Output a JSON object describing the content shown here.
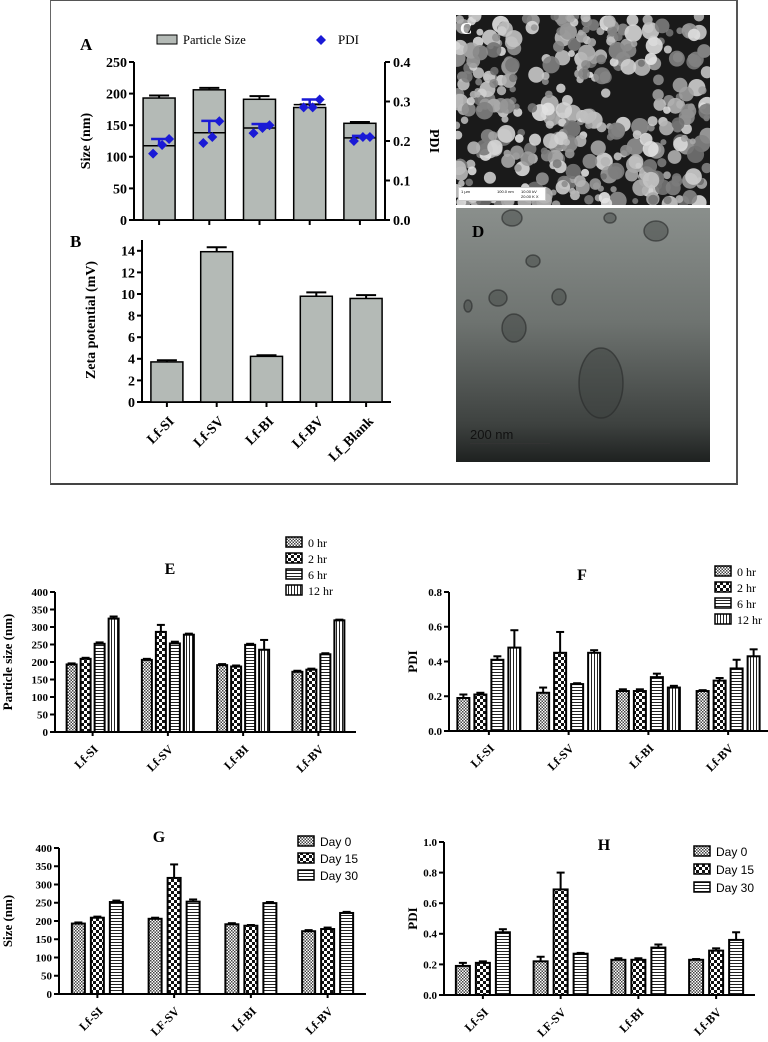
{
  "figure": {
    "panels": {
      "A": {
        "letter": "A"
      },
      "B": {
        "letter": "B"
      },
      "C": {
        "letter": "C",
        "scale_label": "1 µm",
        "scale_detail_1": "100.0 nm",
        "scale_detail_2": "10.00 kV",
        "scale_detail_3": "20.00 K X"
      },
      "D": {
        "letter": "D",
        "scale_label": "200 nm"
      },
      "E": {
        "letter": "E"
      },
      "F": {
        "letter": "F"
      },
      "G": {
        "letter": "G"
      },
      "H": {
        "letter": "H"
      }
    }
  },
  "colors": {
    "bar_gray": "#b4bab6",
    "pdi_blue": "#1a1ad6",
    "axis": "#000000"
  },
  "chart_data": [
    {
      "id": "A",
      "type": "bar",
      "title": "A",
      "categories": [
        "Lf-SI",
        "Lf-SV",
        "Lf-BI",
        "Lf-BV",
        "Lf_Blank"
      ],
      "series": [
        {
          "name": "Particle Size",
          "axis": "left",
          "values": [
            193,
            206,
            191,
            178,
            153
          ],
          "errors": [
            4,
            3,
            5,
            5,
            2
          ]
        },
        {
          "name": "PDI",
          "axis": "right",
          "type": "scatter",
          "mean": [
            0.188,
            0.221,
            0.233,
            0.292,
            0.208
          ],
          "points": [
            [
              0.168,
              0.19,
              0.205
            ],
            [
              0.195,
              0.21,
              0.25
            ],
            [
              0.22,
              0.233,
              0.24
            ],
            [
              0.285,
              0.285,
              0.305
            ],
            [
              0.2,
              0.21,
              0.21
            ]
          ],
          "errors": [
            0.017,
            0.03,
            0.01,
            0.013,
            0.005
          ]
        }
      ],
      "legend": [
        "Particle Size",
        "PDI"
      ],
      "ylabel": "Size (nm)",
      "ylim": [
        0,
        250
      ],
      "yticks": [
        0,
        50,
        100,
        150,
        200,
        250
      ],
      "y2label": "PDI",
      "y2lim": [
        0,
        0.4
      ],
      "y2ticks": [
        "0.0",
        "0.1",
        "0.2",
        "0.3",
        "0.4"
      ]
    },
    {
      "id": "B",
      "type": "bar",
      "title": "B",
      "categories": [
        "Lf-SI",
        "Lf-SV",
        "Lf-BI",
        "Lf-BV",
        "Lf_Blank"
      ],
      "values": [
        3.6,
        13.5,
        4.1,
        9.5,
        9.3
      ],
      "errors": [
        0.15,
        0.4,
        0.1,
        0.35,
        0.3
      ],
      "xlabel": "",
      "ylabel": "Zeta potential (mV)",
      "ylim": [
        0,
        15
      ],
      "yticks": [
        0,
        2,
        4,
        6,
        8,
        10,
        12,
        14
      ]
    },
    {
      "id": "E",
      "type": "bar",
      "title": "E",
      "categories": [
        "Lf-SI",
        "Lf-SV",
        "Lf-BI",
        "Lf-BV"
      ],
      "series": [
        {
          "name": "0 hr",
          "values": [
            193,
            206,
            191,
            172
          ],
          "errors": [
            3,
            3,
            3,
            3
          ]
        },
        {
          "name": "2 hr",
          "values": [
            209,
            286,
            187,
            178
          ],
          "errors": [
            3,
            20,
            3,
            3
          ]
        },
        {
          "name": "6 hr",
          "values": [
            252,
            253,
            249,
            222
          ],
          "errors": [
            4,
            5,
            3,
            3
          ]
        },
        {
          "name": "12 hr",
          "values": [
            324,
            278,
            235,
            319
          ],
          "errors": [
            6,
            3,
            28,
            2
          ]
        }
      ],
      "legend": [
        "0 hr",
        "2 hr",
        "6 hr",
        "12 hr"
      ],
      "ylabel": "Particle size (nm)",
      "ylim": [
        0,
        400
      ],
      "yticks": [
        0,
        50,
        100,
        150,
        200,
        250,
        300,
        350,
        400
      ]
    },
    {
      "id": "F",
      "type": "bar",
      "title": "F",
      "categories": [
        "Lf-SI",
        "Lf-SV",
        "Lf-BI",
        "Lf-BV"
      ],
      "series": [
        {
          "name": "0 hr",
          "values": [
            0.19,
            0.22,
            0.23,
            0.23
          ],
          "errors": [
            0.02,
            0.03,
            0.01,
            0.005
          ]
        },
        {
          "name": "2 hr",
          "values": [
            0.21,
            0.45,
            0.23,
            0.29
          ],
          "errors": [
            0.01,
            0.12,
            0.01,
            0.015
          ]
        },
        {
          "name": "6 hr",
          "values": [
            0.41,
            0.27,
            0.31,
            0.36
          ],
          "errors": [
            0.02,
            0.005,
            0.02,
            0.05
          ]
        },
        {
          "name": "12 hr",
          "values": [
            0.48,
            0.45,
            0.25,
            0.43
          ],
          "errors": [
            0.1,
            0.015,
            0.01,
            0.04
          ]
        }
      ],
      "legend": [
        "0 hr",
        "2 hr",
        "6 hr",
        "12 hr"
      ],
      "ylabel": "PDI",
      "ylim": [
        0,
        0.8
      ],
      "yticks": [
        "0.0",
        "0.2",
        "0.4",
        "0.6",
        "0.8"
      ]
    },
    {
      "id": "G",
      "type": "bar",
      "title": "G",
      "categories": [
        "Lf-SI",
        "LF-SV",
        "Lf-BI",
        "Lf-BV"
      ],
      "series": [
        {
          "name": "Day 0",
          "values": [
            193,
            206,
            191,
            172
          ],
          "errors": [
            3,
            3,
            3,
            3
          ]
        },
        {
          "name": "Day 15",
          "values": [
            209,
            318,
            187,
            178
          ],
          "errors": [
            3,
            37,
            2,
            4
          ]
        },
        {
          "name": "Day 30",
          "values": [
            252,
            253,
            249,
            222
          ],
          "errors": [
            4,
            6,
            3,
            3
          ]
        }
      ],
      "legend": [
        "Day 0",
        "Day 15",
        "Day 30"
      ],
      "ylabel": "Size (nm)",
      "ylim": [
        0,
        400
      ],
      "yticks": [
        0,
        50,
        100,
        150,
        200,
        250,
        300,
        350,
        400
      ]
    },
    {
      "id": "H",
      "type": "bar",
      "title": "H",
      "categories": [
        "Lf-SI",
        "LF-SV",
        "Lf-BI",
        "Lf-BV"
      ],
      "series": [
        {
          "name": "Day 0",
          "values": [
            0.19,
            0.22,
            0.23,
            0.23
          ],
          "errors": [
            0.02,
            0.03,
            0.01,
            0.005
          ]
        },
        {
          "name": "Day 15",
          "values": [
            0.21,
            0.69,
            0.23,
            0.29
          ],
          "errors": [
            0.01,
            0.11,
            0.01,
            0.015
          ]
        },
        {
          "name": "Day 30",
          "values": [
            0.41,
            0.27,
            0.31,
            0.36
          ],
          "errors": [
            0.02,
            0.005,
            0.02,
            0.05
          ]
        }
      ],
      "legend": [
        "Day 0",
        "Day 15",
        "Day 30"
      ],
      "ylabel": "PDI",
      "ylim": [
        0,
        1.0
      ],
      "yticks": [
        "0.0",
        "0.2",
        "0.4",
        "0.6",
        "0.8",
        "1.0"
      ]
    }
  ]
}
